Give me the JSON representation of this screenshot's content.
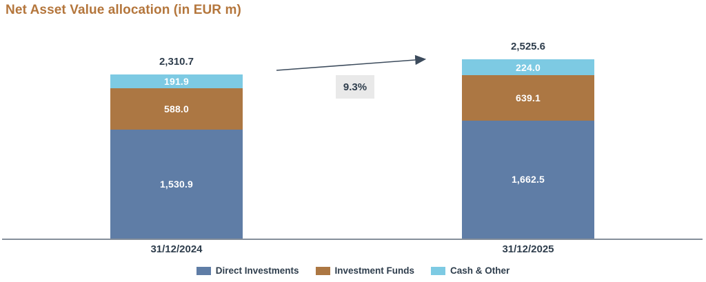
{
  "title": "Net Asset Value allocation (in EUR m)",
  "colors": {
    "title": "#B4763C",
    "direct_investments": "#5F7DA6",
    "investment_funds": "#AC7743",
    "cash_other": "#7DCAE3",
    "dark_text": "#2E3D4C",
    "axis_line": "#848E9A",
    "arrow": "#3C4B5C",
    "pct_box_bg": "#E9E9E9",
    "segment_label": "#FFFFFF"
  },
  "chart_data": {
    "type": "bar",
    "stacked": true,
    "title": "Net Asset Value allocation (in EUR m)",
    "categories": [
      "31/12/2024",
      "31/12/2025"
    ],
    "series": [
      {
        "name": "Direct Investments",
        "color_key": "direct_investments",
        "values": [
          1530.9,
          1662.5
        ],
        "labels": [
          "1,530.9",
          "1,662.5"
        ]
      },
      {
        "name": "Investment Funds",
        "color_key": "investment_funds",
        "values": [
          588.0,
          639.1
        ],
        "labels": [
          "588.0",
          "639.1"
        ]
      },
      {
        "name": "Cash & Other",
        "color_key": "cash_other",
        "values": [
          191.9,
          224.0
        ],
        "labels": [
          "191.9",
          "224.0"
        ]
      }
    ],
    "totals": [
      2310.7,
      2525.6
    ],
    "total_labels": [
      "2,310.7",
      "2,525.6"
    ],
    "growth_label": "9.3%",
    "xlabel": "",
    "ylabel": "",
    "grid": false,
    "legend_position": "bottom"
  },
  "legend": {
    "items": [
      {
        "label": "Direct Investments",
        "color_key": "direct_investments"
      },
      {
        "label": "Investment Funds",
        "color_key": "investment_funds"
      },
      {
        "label": "Cash & Other",
        "color_key": "cash_other"
      }
    ]
  }
}
